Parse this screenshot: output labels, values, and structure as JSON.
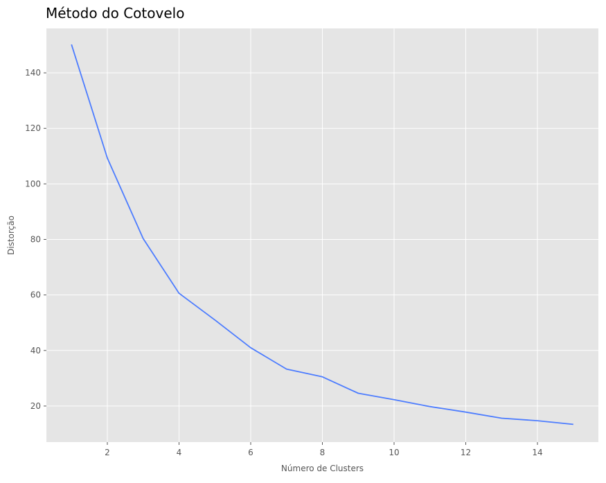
{
  "chart_data": {
    "type": "line",
    "title": "Método do Cotovelo",
    "xlabel": "Número de Clusters",
    "ylabel": "Distorção",
    "xlim": [
      0.3,
      15.7
    ],
    "ylim": [
      7,
      156
    ],
    "xticks": [
      2,
      4,
      6,
      8,
      10,
      12,
      14
    ],
    "yticks": [
      20,
      40,
      60,
      80,
      100,
      120,
      140
    ],
    "grid": true,
    "legend": false,
    "colors": {
      "plot_background": "#e5e5e5",
      "grid": "#ffffff",
      "line": "#4c7cff"
    },
    "series": [
      {
        "x": [
          1,
          2,
          3,
          4,
          5,
          6,
          7,
          8,
          9,
          10,
          11,
          12,
          13,
          14,
          15
        ],
        "values": [
          150.2,
          109.3,
          80.3,
          60.6,
          51.0,
          41.0,
          33.3,
          30.5,
          24.6,
          22.3,
          19.8,
          17.8,
          15.6,
          14.7,
          13.4
        ]
      }
    ]
  }
}
